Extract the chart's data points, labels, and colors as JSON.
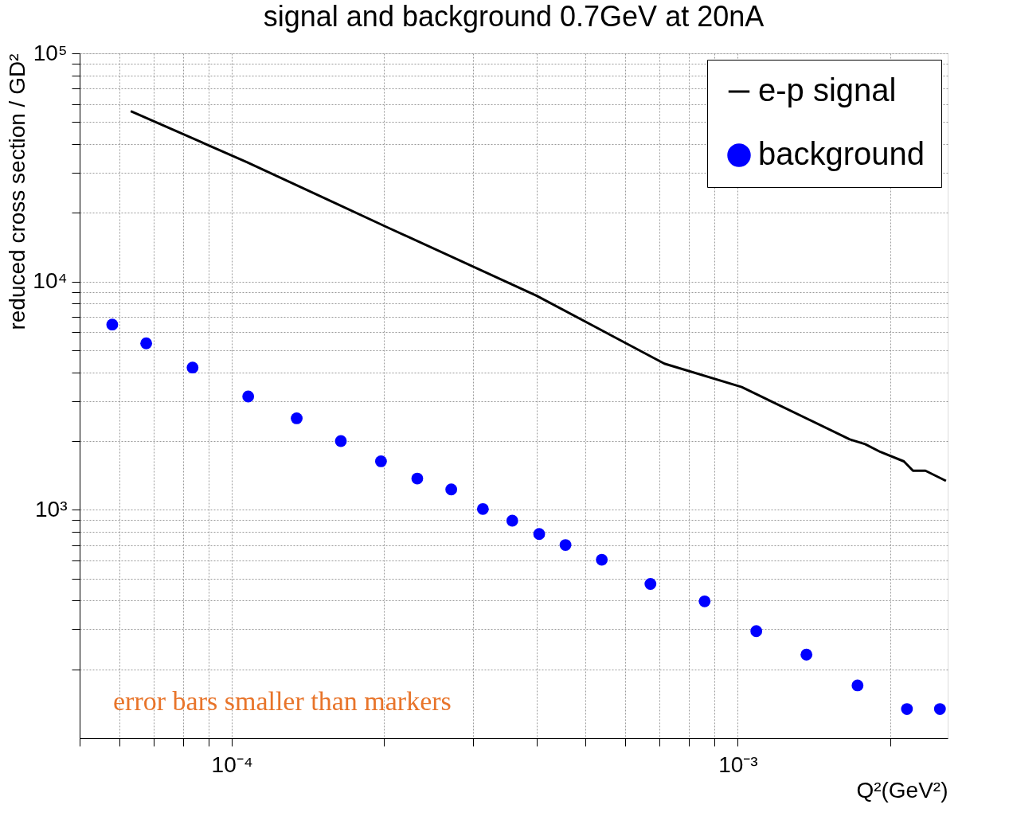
{
  "chart_data": {
    "type": "line",
    "title": "signal and background 0.7GeV at 20nA",
    "xlabel": "Q²(GeV²)",
    "ylabel": "reduced cross section / GD²",
    "log": "xy",
    "grid": true,
    "legend": "top right",
    "xlim": [
      5e-05,
      0.0026
    ],
    "xticks": [
      {
        "value": 5e-05,
        "label": null
      },
      {
        "value": 6e-05,
        "label": null
      },
      {
        "value": 7e-05,
        "label": null
      },
      {
        "value": 8e-05,
        "label": null
      },
      {
        "value": 9e-05,
        "label": null
      },
      {
        "value": 0.0001,
        "label": "10⁻⁴"
      },
      {
        "value": 0.0002,
        "label": null
      },
      {
        "value": 0.0003,
        "label": null
      },
      {
        "value": 0.0004,
        "label": null
      },
      {
        "value": 0.0005,
        "label": null
      },
      {
        "value": 0.0006,
        "label": null
      },
      {
        "value": 0.0007,
        "label": null
      },
      {
        "value": 0.0008,
        "label": null
      },
      {
        "value": 0.0009,
        "label": null
      },
      {
        "value": 0.001,
        "label": "10⁻³"
      },
      {
        "value": 0.002,
        "label": null
      }
    ],
    "ylim": [
      100,
      100000
    ],
    "yticks": [
      {
        "value": 200,
        "label": null
      },
      {
        "value": 300,
        "label": null
      },
      {
        "value": 400,
        "label": null
      },
      {
        "value": 500,
        "label": null
      },
      {
        "value": 600,
        "label": null
      },
      {
        "value": 700,
        "label": null
      },
      {
        "value": 800,
        "label": null
      },
      {
        "value": 900,
        "label": null
      },
      {
        "value": 1000,
        "label": "10³"
      },
      {
        "value": 2000,
        "label": null
      },
      {
        "value": 3000,
        "label": null
      },
      {
        "value": 4000,
        "label": null
      },
      {
        "value": 5000,
        "label": null
      },
      {
        "value": 6000,
        "label": null
      },
      {
        "value": 7000,
        "label": null
      },
      {
        "value": 8000,
        "label": null
      },
      {
        "value": 9000,
        "label": null
      },
      {
        "value": 10000,
        "label": "10⁴"
      },
      {
        "value": 20000,
        "label": null
      },
      {
        "value": 30000,
        "label": null
      },
      {
        "value": 40000,
        "label": null
      },
      {
        "value": 50000,
        "label": null
      },
      {
        "value": 60000,
        "label": null
      },
      {
        "value": 70000,
        "label": null
      },
      {
        "value": 80000,
        "label": null
      },
      {
        "value": 90000,
        "label": null
      },
      {
        "value": 100000,
        "label": "10⁵"
      }
    ],
    "annotations": [
      "error bars smaller than markers"
    ],
    "series": [
      {
        "name": "e-p signal",
        "type": "line",
        "color": "#000000",
        "marker": "none",
        "x": [
          6.31e-05,
          0.000107,
          0.000202,
          0.0004,
          0.000716,
          0.001018,
          0.001665,
          0.001786,
          0.001915,
          0.00213,
          0.00222,
          0.00235,
          0.00258
        ],
        "values": [
          55800,
          33400,
          17360,
          8670,
          4370,
          3450,
          2034,
          1940,
          1792,
          1630,
          1483,
          1483,
          1339
        ]
      },
      {
        "name": "background",
        "type": "scatter",
        "color": "#0000ff",
        "marker": "circle",
        "x": [
          5.8e-05,
          6.77e-05,
          8.36e-05,
          0.0001077,
          0.0001343,
          0.0001642,
          0.0001971,
          0.0002325,
          0.0002714,
          0.0003134,
          0.0003583,
          0.000405,
          0.0004565,
          0.0005385,
          0.000672,
          0.00086,
          0.001088,
          0.001367,
          0.001725,
          0.00216,
          0.00251
        ],
        "values": [
          6480,
          5364,
          4200,
          3138,
          2517,
          2001,
          1631,
          1371,
          1228,
          1008,
          896,
          783,
          701,
          604,
          473,
          397,
          294,
          232,
          170,
          134,
          134
        ]
      }
    ]
  }
}
